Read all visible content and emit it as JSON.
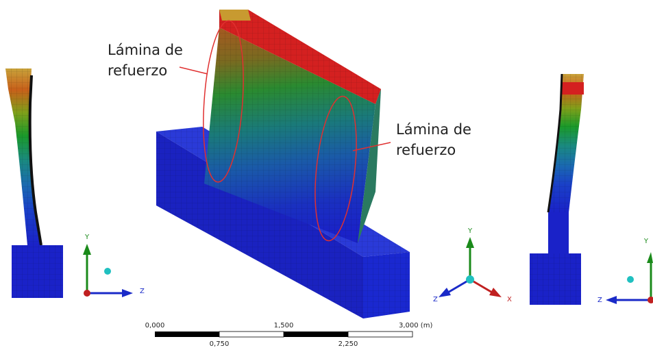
{
  "annotations": [
    {
      "lines": [
        "Lámina de",
        "refuerzo"
      ]
    },
    {
      "lines": [
        "Lámina de",
        "refuerzo"
      ]
    }
  ],
  "triads": [
    {
      "labels": [
        "Y",
        "Z"
      ]
    },
    {
      "labels": [
        "Y",
        "Z",
        "X"
      ]
    },
    {
      "labels": [
        "Y",
        "Z"
      ]
    }
  ],
  "scale_bar": {
    "top_labels": [
      "0,000",
      "1,500",
      "3,000 (m)"
    ],
    "bottom_labels": [
      "0,750",
      "2,250"
    ]
  }
}
